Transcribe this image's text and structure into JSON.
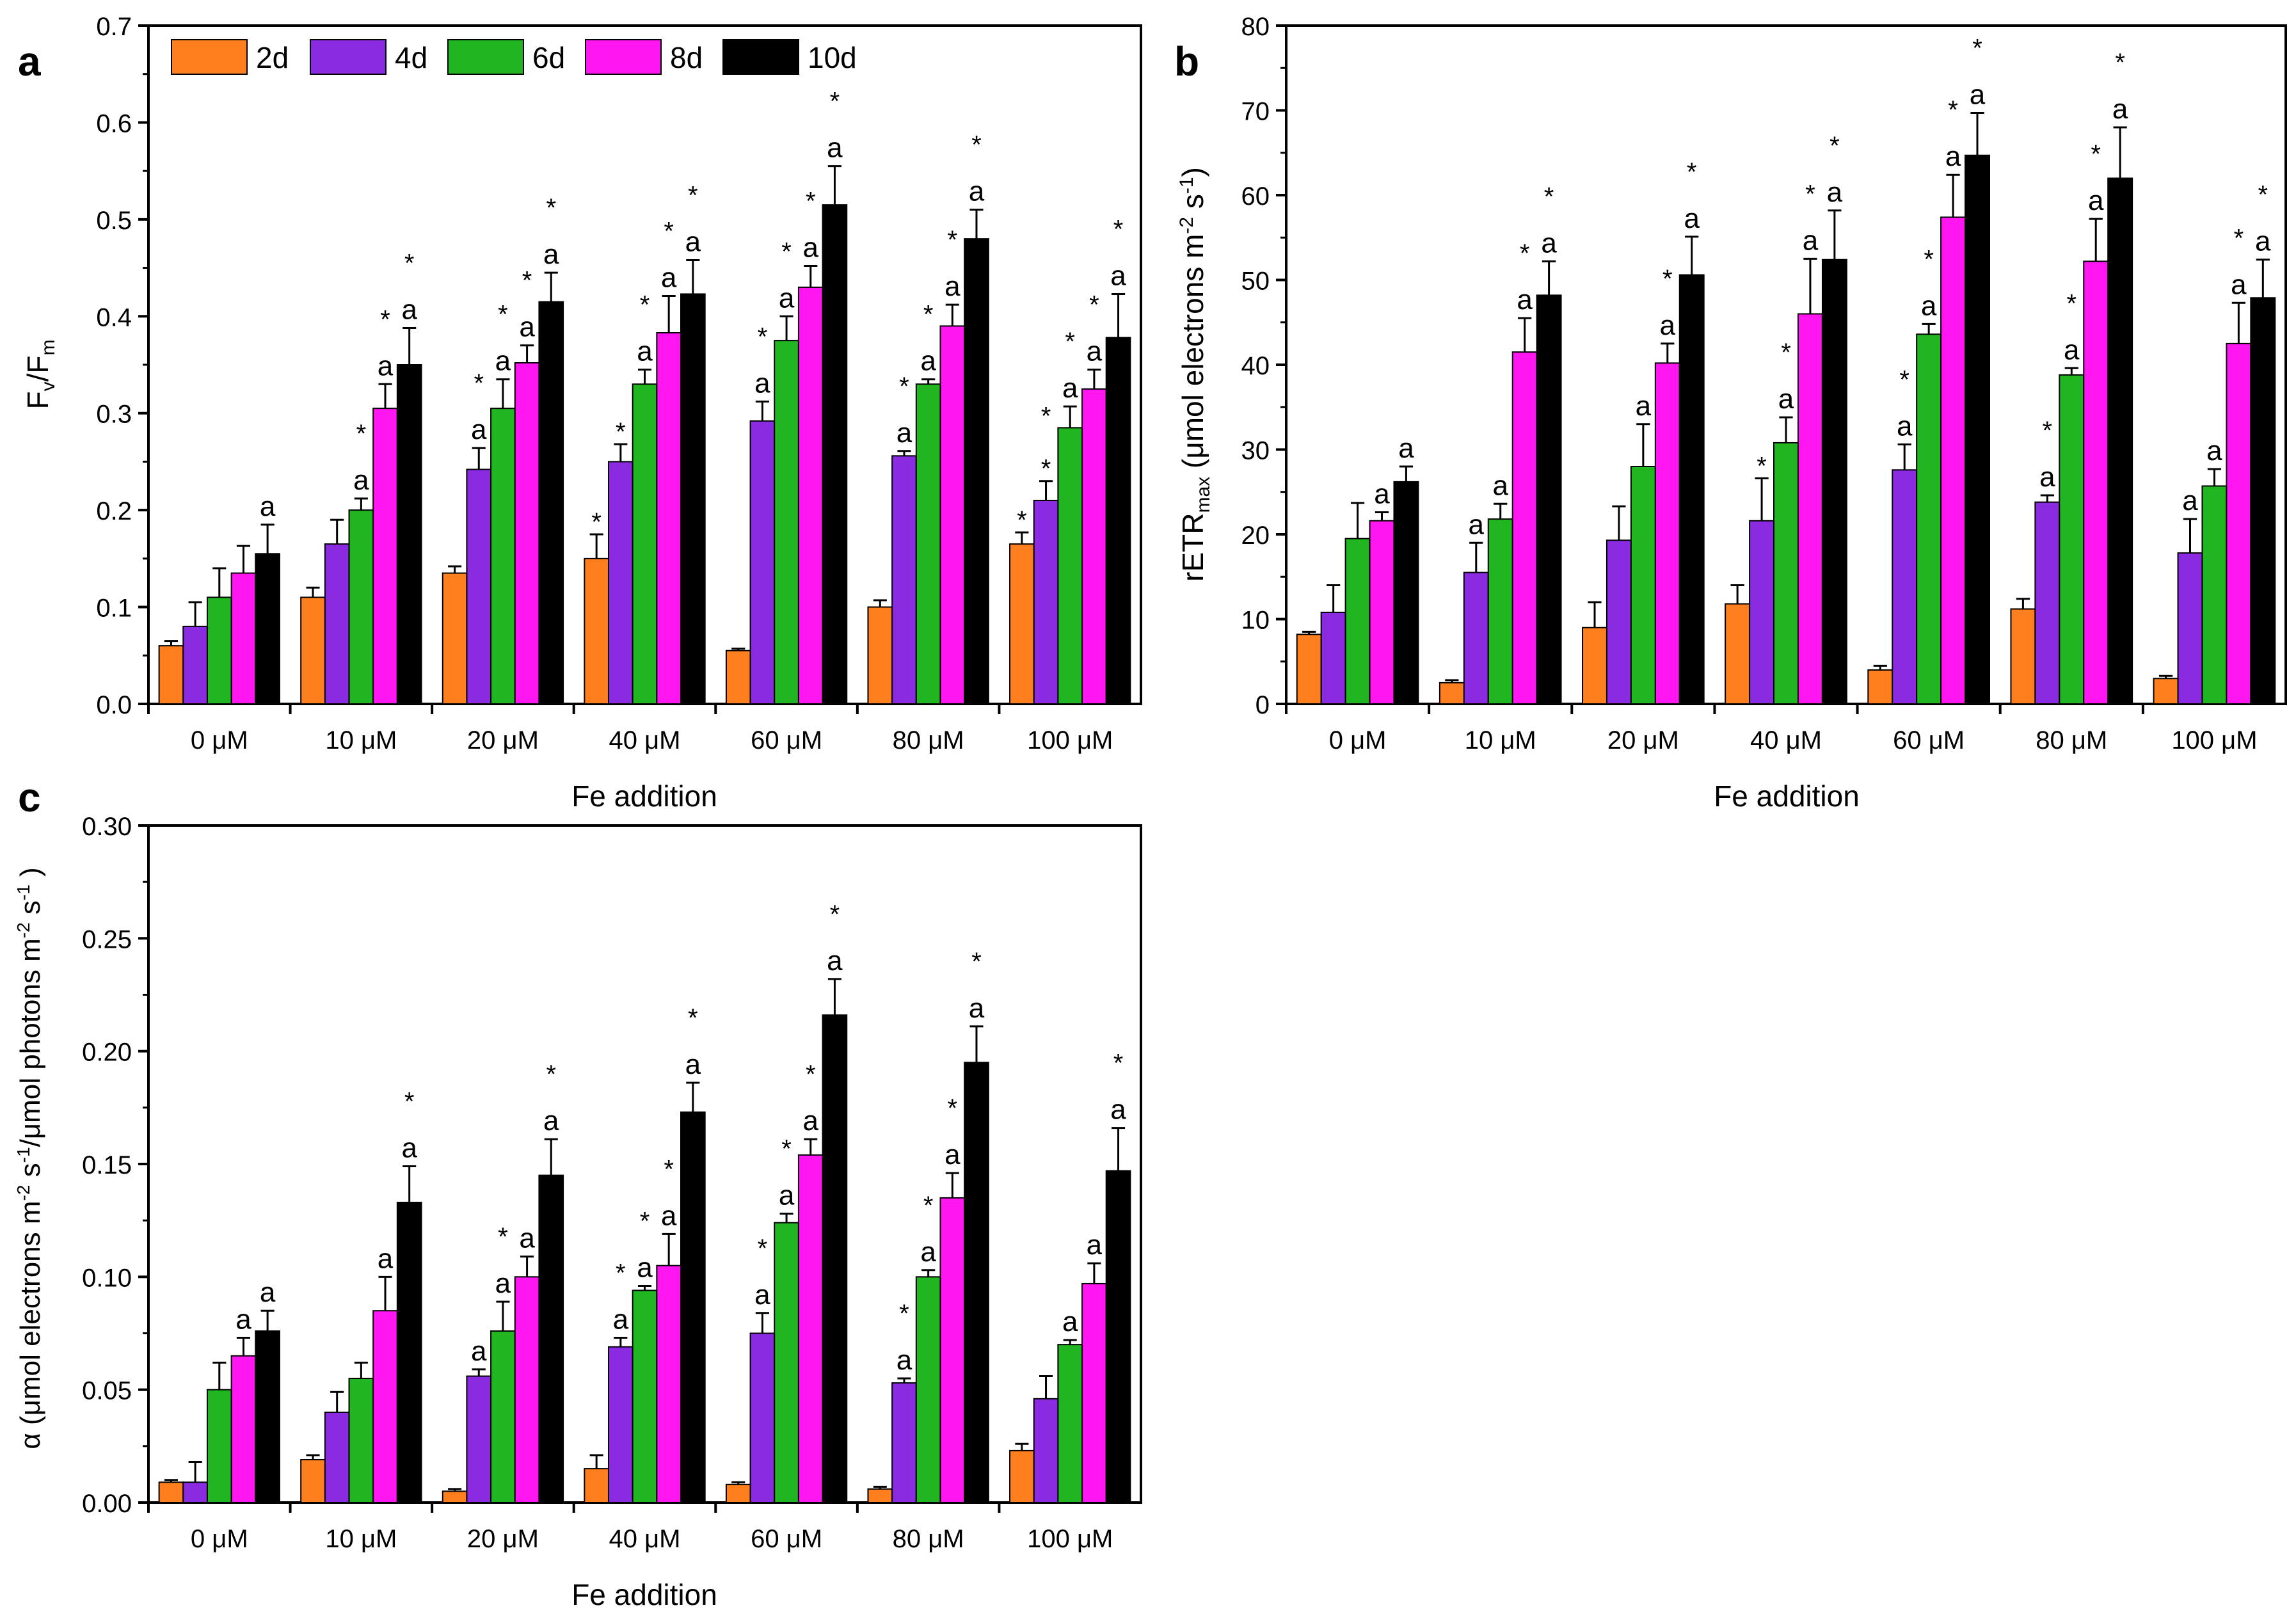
{
  "legend": {
    "items": [
      {
        "label": "2d",
        "color": "#FF7F1E"
      },
      {
        "label": "4d",
        "color": "#8A2BE2"
      },
      {
        "label": "6d",
        "color": "#22B522"
      },
      {
        "label": "8d",
        "color": "#FF16F0"
      },
      {
        "label": "10d",
        "color": "#000000"
      }
    ]
  },
  "chart_data": [
    {
      "panel": "a",
      "type": "bar",
      "xlabel": "Fe addition",
      "ylabel": "Fv/Fm",
      "ylim": [
        0,
        0.7
      ],
      "yticks": [
        "0.0",
        "0.1",
        "0.2",
        "0.3",
        "0.4",
        "0.5",
        "0.6",
        "0.7"
      ],
      "categories": [
        "0 μM",
        "10 μM",
        "20 μM",
        "40 μM",
        "60 μM",
        "80 μM",
        "100 μM"
      ],
      "series": [
        {
          "name": "2d",
          "values": [
            0.06,
            0.11,
            0.135,
            0.15,
            0.055,
            0.1,
            0.165
          ],
          "errors": [
            0.005,
            0.01,
            0.007,
            0.025,
            0.002,
            0.007,
            0.012
          ]
        },
        {
          "name": "4d",
          "values": [
            0.08,
            0.165,
            0.242,
            0.25,
            0.292,
            0.256,
            0.21
          ],
          "errors": [
            0.025,
            0.025,
            0.022,
            0.018,
            0.02,
            0.005,
            0.02
          ]
        },
        {
          "name": "6d",
          "values": [
            0.11,
            0.2,
            0.305,
            0.33,
            0.375,
            0.33,
            0.285
          ],
          "errors": [
            0.03,
            0.012,
            0.03,
            0.015,
            0.025,
            0.005,
            0.022
          ]
        },
        {
          "name": "8d",
          "values": [
            0.135,
            0.305,
            0.352,
            0.383,
            0.43,
            0.39,
            0.325
          ],
          "errors": [
            0.028,
            0.025,
            0.018,
            0.038,
            0.022,
            0.022,
            0.02
          ]
        },
        {
          "name": "10d",
          "values": [
            0.155,
            0.35,
            0.415,
            0.423,
            0.515,
            0.48,
            0.378
          ],
          "errors": [
            0.03,
            0.038,
            0.03,
            0.035,
            0.04,
            0.03,
            0.045
          ]
        }
      ],
      "annotations": [
        {
          "series": 1,
          "category": 6,
          "text": "*"
        },
        {
          "series": 0,
          "category": 3,
          "text": "*"
        },
        {
          "series": 0,
          "category": 6,
          "text": "*"
        },
        {
          "series": 4,
          "category": 0,
          "text": "a"
        },
        {
          "series": 2,
          "category": 1,
          "text": "a"
        },
        {
          "series": 2,
          "category": 1,
          "text": "*"
        },
        {
          "series": 3,
          "category": 1,
          "text": "a"
        },
        {
          "series": 3,
          "category": 1,
          "text": "*"
        },
        {
          "series": 4,
          "category": 1,
          "text": "a"
        },
        {
          "series": 4,
          "category": 1,
          "text": "*"
        },
        {
          "series": 1,
          "category": 2,
          "text": "a"
        },
        {
          "series": 1,
          "category": 2,
          "text": "*"
        },
        {
          "series": 2,
          "category": 2,
          "text": "a"
        },
        {
          "series": 2,
          "category": 2,
          "text": "*"
        },
        {
          "series": 3,
          "category": 2,
          "text": "a"
        },
        {
          "series": 3,
          "category": 2,
          "text": "*"
        },
        {
          "series": 4,
          "category": 2,
          "text": "a"
        },
        {
          "series": 4,
          "category": 2,
          "text": "*"
        },
        {
          "series": 1,
          "category": 3,
          "text": "*"
        },
        {
          "series": 2,
          "category": 3,
          "text": "a"
        },
        {
          "series": 2,
          "category": 3,
          "text": "*"
        },
        {
          "series": 3,
          "category": 3,
          "text": "a"
        },
        {
          "series": 3,
          "category": 3,
          "text": "*"
        },
        {
          "series": 4,
          "category": 3,
          "text": "a"
        },
        {
          "series": 4,
          "category": 3,
          "text": "*"
        },
        {
          "series": 1,
          "category": 4,
          "text": "a"
        },
        {
          "series": 1,
          "category": 4,
          "text": "*"
        },
        {
          "series": 2,
          "category": 4,
          "text": "a"
        },
        {
          "series": 2,
          "category": 4,
          "text": "*"
        },
        {
          "series": 3,
          "category": 4,
          "text": "a"
        },
        {
          "series": 3,
          "category": 4,
          "text": "*"
        },
        {
          "series": 4,
          "category": 4,
          "text": "a"
        },
        {
          "series": 4,
          "category": 4,
          "text": "*"
        },
        {
          "series": 1,
          "category": 5,
          "text": "a"
        },
        {
          "series": 1,
          "category": 5,
          "text": "*"
        },
        {
          "series": 2,
          "category": 5,
          "text": "a"
        },
        {
          "series": 2,
          "category": 5,
          "text": "*"
        },
        {
          "series": 3,
          "category": 5,
          "text": "a"
        },
        {
          "series": 3,
          "category": 5,
          "text": "*"
        },
        {
          "series": 4,
          "category": 5,
          "text": "a"
        },
        {
          "series": 4,
          "category": 5,
          "text": "*"
        },
        {
          "series": 1,
          "category": 6,
          "text": "*"
        },
        {
          "series": 2,
          "category": 6,
          "text": "a"
        },
        {
          "series": 2,
          "category": 6,
          "text": "*"
        },
        {
          "series": 3,
          "category": 6,
          "text": "a"
        },
        {
          "series": 3,
          "category": 6,
          "text": "*"
        },
        {
          "series": 4,
          "category": 6,
          "text": "a"
        },
        {
          "series": 4,
          "category": 6,
          "text": "*"
        }
      ]
    },
    {
      "panel": "b",
      "type": "bar",
      "xlabel": "Fe addition",
      "ylabel": "rETRmax (μmol electrons m-2 s-1)",
      "ylim": [
        0,
        80
      ],
      "yticks": [
        "0",
        "10",
        "20",
        "30",
        "40",
        "50",
        "60",
        "70",
        "80"
      ],
      "categories": [
        "0 μM",
        "10 μM",
        "20 μM",
        "40 μM",
        "60 μM",
        "80 μM",
        "100 μM"
      ],
      "series": [
        {
          "name": "2d",
          "values": [
            8.2,
            2.5,
            9.0,
            11.8,
            4.0,
            11.2,
            3.0
          ],
          "errors": [
            0.3,
            0.3,
            3.0,
            2.2,
            0.5,
            1.2,
            0.3
          ]
        },
        {
          "name": "4d",
          "values": [
            10.8,
            15.5,
            19.3,
            21.6,
            27.6,
            23.8,
            17.8
          ],
          "errors": [
            3.2,
            3.5,
            4.0,
            5.0,
            3.0,
            0.8,
            4.0
          ]
        },
        {
          "name": "6d",
          "values": [
            19.5,
            21.8,
            28.0,
            30.8,
            43.6,
            38.8,
            25.7
          ],
          "errors": [
            4.2,
            1.8,
            5.0,
            3.0,
            1.2,
            0.8,
            2.0
          ]
        },
        {
          "name": "8d",
          "values": [
            21.6,
            41.5,
            40.2,
            46.0,
            57.4,
            52.2,
            42.5
          ],
          "errors": [
            1.0,
            4.0,
            2.3,
            6.5,
            5.0,
            5.0,
            4.8
          ]
        },
        {
          "name": "10d",
          "values": [
            26.2,
            48.2,
            50.6,
            52.4,
            64.7,
            62.0,
            47.9
          ],
          "errors": [
            1.8,
            4.0,
            4.5,
            5.8,
            5.0,
            6.0,
            4.5
          ]
        }
      ],
      "annotations": [
        {
          "series": 3,
          "category": 0,
          "text": "a"
        },
        {
          "series": 4,
          "category": 0,
          "text": "a"
        },
        {
          "series": 1,
          "category": 1,
          "text": "a"
        },
        {
          "series": 2,
          "category": 1,
          "text": "a"
        },
        {
          "series": 3,
          "category": 1,
          "text": "a"
        },
        {
          "series": 3,
          "category": 1,
          "text": "*"
        },
        {
          "series": 4,
          "category": 1,
          "text": "a"
        },
        {
          "series": 4,
          "category": 1,
          "text": "*"
        },
        {
          "series": 2,
          "category": 2,
          "text": "a"
        },
        {
          "series": 3,
          "category": 2,
          "text": "a"
        },
        {
          "series": 3,
          "category": 2,
          "text": "*"
        },
        {
          "series": 4,
          "category": 2,
          "text": "a"
        },
        {
          "series": 4,
          "category": 2,
          "text": "*"
        },
        {
          "series": 1,
          "category": 3,
          "text": "*"
        },
        {
          "series": 2,
          "category": 3,
          "text": "a"
        },
        {
          "series": 2,
          "category": 3,
          "text": "*"
        },
        {
          "series": 3,
          "category": 3,
          "text": "a"
        },
        {
          "series": 3,
          "category": 3,
          "text": "*"
        },
        {
          "series": 4,
          "category": 3,
          "text": "a"
        },
        {
          "series": 4,
          "category": 3,
          "text": "*"
        },
        {
          "series": 1,
          "category": 4,
          "text": "a"
        },
        {
          "series": 1,
          "category": 4,
          "text": "*"
        },
        {
          "series": 2,
          "category": 4,
          "text": "a"
        },
        {
          "series": 2,
          "category": 4,
          "text": "*"
        },
        {
          "series": 3,
          "category": 4,
          "text": "a"
        },
        {
          "series": 3,
          "category": 4,
          "text": "*"
        },
        {
          "series": 4,
          "category": 4,
          "text": "a"
        },
        {
          "series": 4,
          "category": 4,
          "text": "*"
        },
        {
          "series": 1,
          "category": 5,
          "text": "a"
        },
        {
          "series": 1,
          "category": 5,
          "text": "*"
        },
        {
          "series": 2,
          "category": 5,
          "text": "a"
        },
        {
          "series": 2,
          "category": 5,
          "text": "*"
        },
        {
          "series": 3,
          "category": 5,
          "text": "a"
        },
        {
          "series": 3,
          "category": 5,
          "text": "*"
        },
        {
          "series": 4,
          "category": 5,
          "text": "a"
        },
        {
          "series": 4,
          "category": 5,
          "text": "*"
        },
        {
          "series": 1,
          "category": 6,
          "text": "a"
        },
        {
          "series": 2,
          "category": 6,
          "text": "a"
        },
        {
          "series": 3,
          "category": 6,
          "text": "a"
        },
        {
          "series": 3,
          "category": 6,
          "text": "*"
        },
        {
          "series": 4,
          "category": 6,
          "text": "a"
        },
        {
          "series": 4,
          "category": 6,
          "text": "*"
        }
      ]
    },
    {
      "panel": "c",
      "type": "bar",
      "xlabel": "Fe addition",
      "ylabel": "α (μmol electrons m-2 s-1/μmol photons m-2 s-1 )",
      "ylim": [
        0,
        0.3
      ],
      "yticks": [
        "0.00",
        "0.05",
        "0.10",
        "0.15",
        "0.20",
        "0.25",
        "0.30"
      ],
      "categories": [
        "0 μM",
        "10 μM",
        "20 μM",
        "40 μM",
        "60 μM",
        "80 μM",
        "100 μM"
      ],
      "series": [
        {
          "name": "2d",
          "values": [
            0.009,
            0.019,
            0.005,
            0.015,
            0.008,
            0.006,
            0.023
          ],
          "errors": [
            0.001,
            0.002,
            0.001,
            0.006,
            0.001,
            0.001,
            0.003
          ]
        },
        {
          "name": "4d",
          "values": [
            0.009,
            0.04,
            0.056,
            0.069,
            0.075,
            0.053,
            0.046
          ],
          "errors": [
            0.009,
            0.009,
            0.003,
            0.004,
            0.009,
            0.002,
            0.01
          ]
        },
        {
          "name": "6d",
          "values": [
            0.05,
            0.055,
            0.076,
            0.094,
            0.124,
            0.1,
            0.07
          ],
          "errors": [
            0.012,
            0.007,
            0.013,
            0.002,
            0.004,
            0.003,
            0.002
          ]
        },
        {
          "name": "8d",
          "values": [
            0.065,
            0.085,
            0.1,
            0.105,
            0.154,
            0.135,
            0.097
          ],
          "errors": [
            0.008,
            0.015,
            0.009,
            0.014,
            0.007,
            0.011,
            0.009
          ]
        },
        {
          "name": "10d",
          "values": [
            0.076,
            0.133,
            0.145,
            0.173,
            0.216,
            0.195,
            0.147
          ],
          "errors": [
            0.009,
            0.016,
            0.016,
            0.013,
            0.016,
            0.016,
            0.019
          ]
        }
      ],
      "annotations": [
        {
          "series": 3,
          "category": 0,
          "text": "a"
        },
        {
          "series": 4,
          "category": 0,
          "text": "a"
        },
        {
          "series": 3,
          "category": 1,
          "text": "a"
        },
        {
          "series": 4,
          "category": 1,
          "text": "a"
        },
        {
          "series": 4,
          "category": 1,
          "text": "*"
        },
        {
          "series": 1,
          "category": 2,
          "text": "a"
        },
        {
          "series": 2,
          "category": 2,
          "text": "a"
        },
        {
          "series": 2,
          "category": 2,
          "text": "*"
        },
        {
          "series": 3,
          "category": 2,
          "text": "a"
        },
        {
          "series": 4,
          "category": 2,
          "text": "a"
        },
        {
          "series": 4,
          "category": 2,
          "text": "*"
        },
        {
          "series": 1,
          "category": 3,
          "text": "a"
        },
        {
          "series": 1,
          "category": 3,
          "text": "*"
        },
        {
          "series": 2,
          "category": 3,
          "text": "a"
        },
        {
          "series": 2,
          "category": 3,
          "text": "*"
        },
        {
          "series": 3,
          "category": 3,
          "text": "a"
        },
        {
          "series": 3,
          "category": 3,
          "text": "*"
        },
        {
          "series": 4,
          "category": 3,
          "text": "a"
        },
        {
          "series": 4,
          "category": 3,
          "text": "*"
        },
        {
          "series": 1,
          "category": 4,
          "text": "a"
        },
        {
          "series": 1,
          "category": 4,
          "text": "*"
        },
        {
          "series": 2,
          "category": 4,
          "text": "a"
        },
        {
          "series": 2,
          "category": 4,
          "text": "*"
        },
        {
          "series": 3,
          "category": 4,
          "text": "a"
        },
        {
          "series": 3,
          "category": 4,
          "text": "*"
        },
        {
          "series": 4,
          "category": 4,
          "text": "a"
        },
        {
          "series": 4,
          "category": 4,
          "text": "*"
        },
        {
          "series": 1,
          "category": 5,
          "text": "a"
        },
        {
          "series": 1,
          "category": 5,
          "text": "*"
        },
        {
          "series": 2,
          "category": 5,
          "text": "a"
        },
        {
          "series": 2,
          "category": 5,
          "text": "*"
        },
        {
          "series": 3,
          "category": 5,
          "text": "a"
        },
        {
          "series": 3,
          "category": 5,
          "text": "*"
        },
        {
          "series": 4,
          "category": 5,
          "text": "a"
        },
        {
          "series": 4,
          "category": 5,
          "text": "*"
        },
        {
          "series": 2,
          "category": 6,
          "text": "a"
        },
        {
          "series": 3,
          "category": 6,
          "text": "a"
        },
        {
          "series": 4,
          "category": 6,
          "text": "a"
        },
        {
          "series": 4,
          "category": 6,
          "text": "*"
        }
      ]
    }
  ]
}
